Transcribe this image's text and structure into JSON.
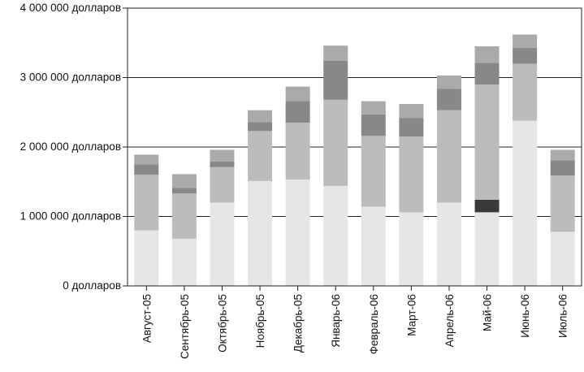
{
  "chart_data": {
    "type": "bar",
    "stacked": true,
    "title": "",
    "xlabel": "",
    "ylabel": "",
    "ylim": [
      0,
      4000000
    ],
    "grid": true,
    "legend": "none",
    "y_ticks": [
      {
        "value": 0,
        "label": "0 долларов"
      },
      {
        "value": 1000000,
        "label": "1 000 000 долларов"
      },
      {
        "value": 2000000,
        "label": "2 000 000 долларов"
      },
      {
        "value": 3000000,
        "label": "3 000 000 долларов"
      },
      {
        "value": 4000000,
        "label": "4 000 000 долларов"
      }
    ],
    "categories": [
      "Август-05",
      "Сентябрь-05",
      "Октябрь-05",
      "Ноябрь-05",
      "Декабрь-05",
      "Январь-06",
      "Февраль-06",
      "Март-06",
      "Апрель-06",
      "Май-06",
      "Июнь-06",
      "Июль-06"
    ],
    "series": [
      {
        "color": "#e6e6e6",
        "values": [
          800000,
          680000,
          1200000,
          1510000,
          1530000,
          1440000,
          1140000,
          1060000,
          1200000,
          1060000,
          2380000,
          780000
        ]
      },
      {
        "color": "#3a3a3a",
        "values": [
          0,
          0,
          0,
          0,
          0,
          0,
          0,
          0,
          0,
          180000,
          0,
          0
        ]
      },
      {
        "color": "#bcbcbc",
        "values": [
          800000,
          650000,
          510000,
          720000,
          820000,
          1240000,
          1020000,
          1090000,
          1330000,
          1660000,
          820000,
          810000
        ]
      },
      {
        "color": "#888888",
        "values": [
          150000,
          80000,
          80000,
          130000,
          310000,
          560000,
          310000,
          270000,
          310000,
          310000,
          230000,
          220000
        ]
      },
      {
        "color": "#aaaaaa",
        "values": [
          140000,
          200000,
          170000,
          170000,
          210000,
          220000,
          190000,
          200000,
          190000,
          240000,
          190000,
          150000
        ]
      }
    ]
  }
}
